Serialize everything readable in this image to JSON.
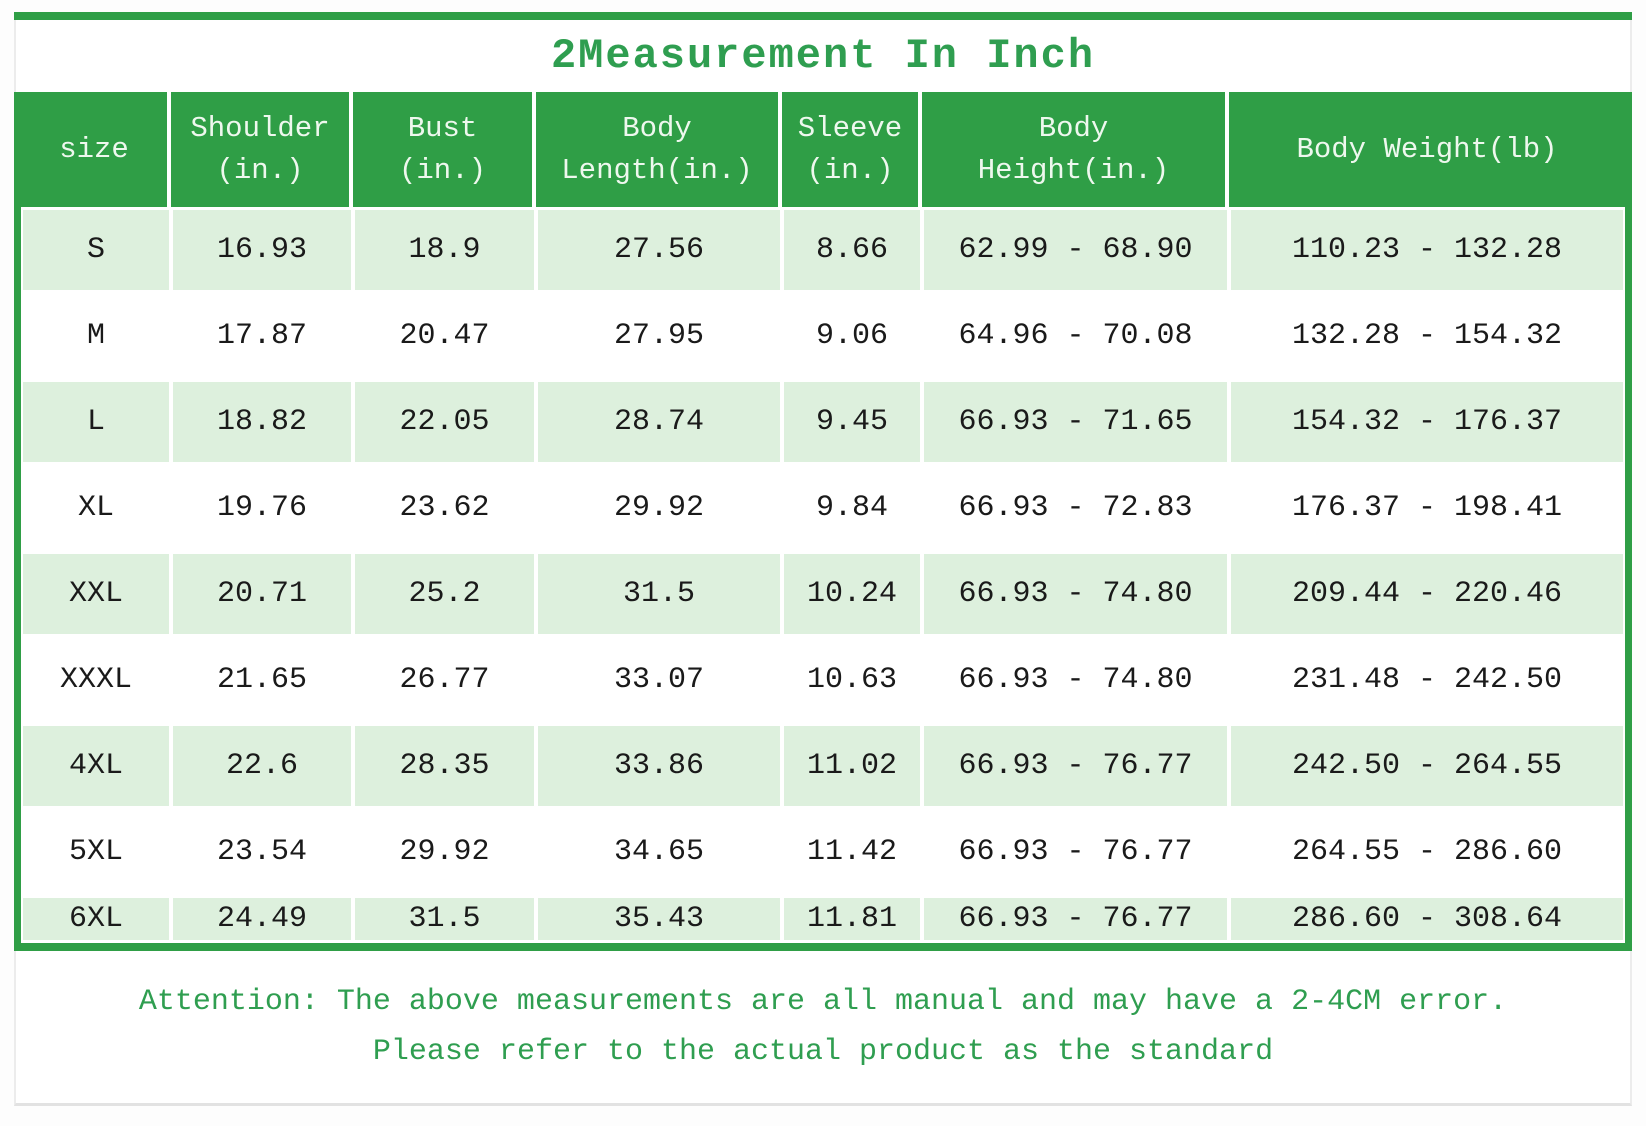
{
  "title": "2Measurement In Inch",
  "colors": {
    "green": "#2f9e46",
    "light_green": "#ddf0dd",
    "green_text": "#2f9e50",
    "header_text": "#eef8ee"
  },
  "table": {
    "columns": [
      {
        "id": "size",
        "lines": [
          "size"
        ]
      },
      {
        "id": "shoulder",
        "lines": [
          "Shoulder",
          "(in.)"
        ]
      },
      {
        "id": "bust",
        "lines": [
          "Bust",
          "(in.)"
        ]
      },
      {
        "id": "body-length",
        "lines": [
          "Body",
          "Length(in.)"
        ]
      },
      {
        "id": "sleeve",
        "lines": [
          "Sleeve",
          "(in.)"
        ]
      },
      {
        "id": "body-height",
        "lines": [
          "Body",
          "Height(in.)"
        ]
      },
      {
        "id": "body-weight",
        "lines": [
          "Body Weight(lb)"
        ]
      }
    ],
    "rows": [
      {
        "size": "S",
        "shoulder": "16.93",
        "bust": "18.9",
        "body_length": "27.56",
        "sleeve": "8.66",
        "body_height": "62.99 - 68.90",
        "body_weight": "110.23 - 132.28"
      },
      {
        "size": "M",
        "shoulder": "17.87",
        "bust": "20.47",
        "body_length": "27.95",
        "sleeve": "9.06",
        "body_height": "64.96 - 70.08",
        "body_weight": "132.28 - 154.32"
      },
      {
        "size": "L",
        "shoulder": "18.82",
        "bust": "22.05",
        "body_length": "28.74",
        "sleeve": "9.45",
        "body_height": "66.93 - 71.65",
        "body_weight": "154.32 - 176.37"
      },
      {
        "size": "XL",
        "shoulder": "19.76",
        "bust": "23.62",
        "body_length": "29.92",
        "sleeve": "9.84",
        "body_height": "66.93 - 72.83",
        "body_weight": "176.37 - 198.41"
      },
      {
        "size": "XXL",
        "shoulder": "20.71",
        "bust": "25.2",
        "body_length": "31.5",
        "sleeve": "10.24",
        "body_height": "66.93 - 74.80",
        "body_weight": "209.44 - 220.46"
      },
      {
        "size": "XXXL",
        "shoulder": "21.65",
        "bust": "26.77",
        "body_length": "33.07",
        "sleeve": "10.63",
        "body_height": "66.93 - 74.80",
        "body_weight": "231.48 - 242.50"
      },
      {
        "size": "4XL",
        "shoulder": "22.6",
        "bust": "28.35",
        "body_length": "33.86",
        "sleeve": "11.02",
        "body_height": "66.93 - 76.77",
        "body_weight": "242.50 - 264.55"
      },
      {
        "size": "5XL",
        "shoulder": "23.54",
        "bust": "29.92",
        "body_length": "34.65",
        "sleeve": "11.42",
        "body_height": "66.93 - 76.77",
        "body_weight": "264.55 - 286.60"
      },
      {
        "size": "6XL",
        "shoulder": "24.49",
        "bust": "31.5",
        "body_length": "35.43",
        "sleeve": "11.81",
        "body_height": "66.93 - 76.77",
        "body_weight": "286.60 - 308.64"
      }
    ]
  },
  "attention": {
    "line1": "Attention: The above measurements are all manual and may have a 2-4CM error.",
    "line2": "Please refer to the actual product as the standard"
  }
}
